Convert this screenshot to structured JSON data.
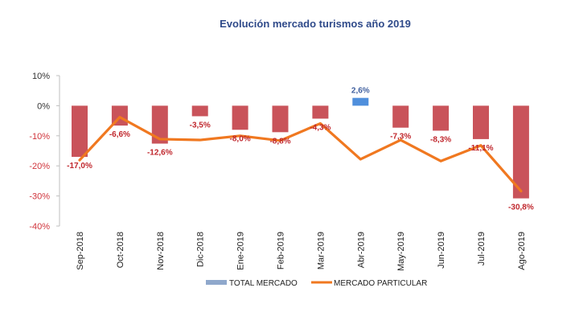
{
  "chart_data": {
    "type": "bar+line",
    "title": "Evolución mercado turismos año 2019",
    "categories": [
      "Sep-2018",
      "Oct-2018",
      "Nov-2018",
      "Dic-2018",
      "Ene-2019",
      "Feb-2019",
      "Mar-2019",
      "Abr-2019",
      "May-2019",
      "Jun-2019",
      "Jul-2019",
      "Ago-2019"
    ],
    "series": [
      {
        "name": "TOTAL MERCADO",
        "type": "bar",
        "values": [
          -17.0,
          -6.6,
          -12.6,
          -3.5,
          -8.0,
          -8.8,
          -4.3,
          2.6,
          -7.3,
          -8.3,
          -11.1,
          -30.8
        ],
        "labels": [
          "-17,0%",
          "-6,6%",
          "-12,6%",
          "-3,5%",
          "-8,0%",
          "-8,8%",
          "-4,3%",
          "2,6%",
          "-7,3%",
          "-8,3%",
          "-11,1%",
          "-30,8%"
        ]
      },
      {
        "name": "MERCADO PARTICULAR",
        "type": "line",
        "values": [
          -18.1,
          -3.8,
          -11.1,
          -11.4,
          -10.0,
          -11.6,
          -5.9,
          -17.8,
          -11.4,
          -18.4,
          -13.2,
          -28.4
        ]
      }
    ],
    "yticks": [
      "10%",
      "0%",
      "-10%",
      "-20%",
      "-30%",
      "-40%"
    ],
    "ytick_values": [
      10,
      0,
      -10,
      -20,
      -30,
      -40
    ],
    "ylim": [
      -40,
      10
    ],
    "xlabel": "",
    "ylabel": "",
    "grid": false,
    "legend_position": "bottom",
    "colors": {
      "bar_negative": "#c9535a",
      "bar_positive": "#4f8fdc",
      "line": "#f07820",
      "legend_bar": "#8fa8cc",
      "label_negative": "#c0272d",
      "label_positive": "#3f5f9f",
      "tick_negative": "#d0343b",
      "tick_positive": "#333333",
      "title": "#2f4a8a"
    }
  }
}
